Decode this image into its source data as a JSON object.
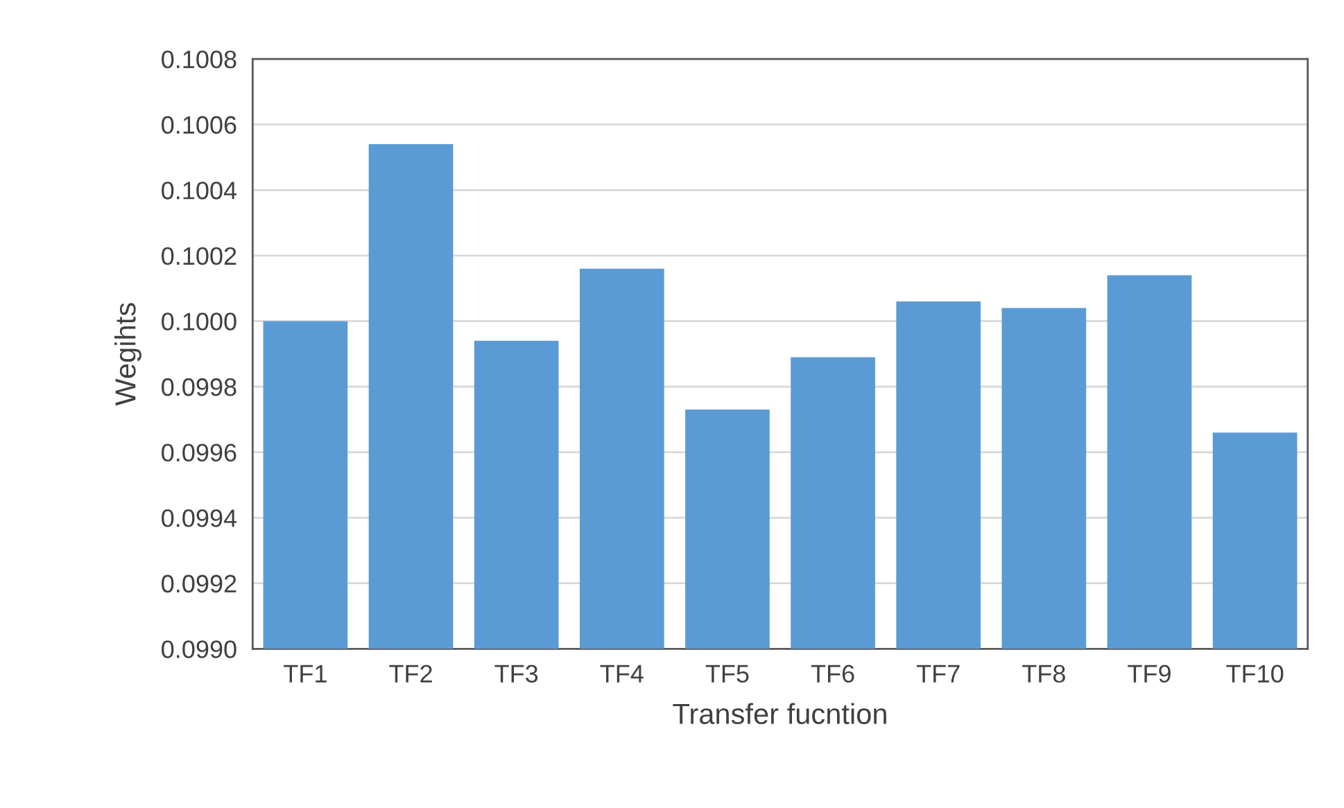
{
  "chart_data": {
    "type": "bar",
    "xlabel": "Transfer fucntion",
    "ylabel": "Wegihts",
    "categories": [
      "TF1",
      "TF2",
      "TF3",
      "TF4",
      "TF5",
      "TF6",
      "TF7",
      "TF8",
      "TF9",
      "TF10"
    ],
    "values": [
      0.1,
      0.10054,
      0.09994,
      0.10016,
      0.09973,
      0.09989,
      0.10006,
      0.10004,
      0.10014,
      0.09966
    ],
    "color": "#5b9bd5",
    "ylim": [
      0.099,
      0.1008
    ],
    "yticks": [
      {
        "value": 0.099,
        "label": "0.0990"
      },
      {
        "value": 0.0992,
        "label": "0.0992"
      },
      {
        "value": 0.0994,
        "label": "0.0994"
      },
      {
        "value": 0.0996,
        "label": "0.0996"
      },
      {
        "value": 0.0998,
        "label": "0.0998"
      },
      {
        "value": 0.1,
        "label": "0.1000"
      },
      {
        "value": 0.1002,
        "label": "0.1002"
      },
      {
        "value": 0.1004,
        "label": "0.1004"
      },
      {
        "value": 0.1006,
        "label": "0.1006"
      },
      {
        "value": 0.1008,
        "label": "0.1008"
      }
    ],
    "grid": "y"
  }
}
